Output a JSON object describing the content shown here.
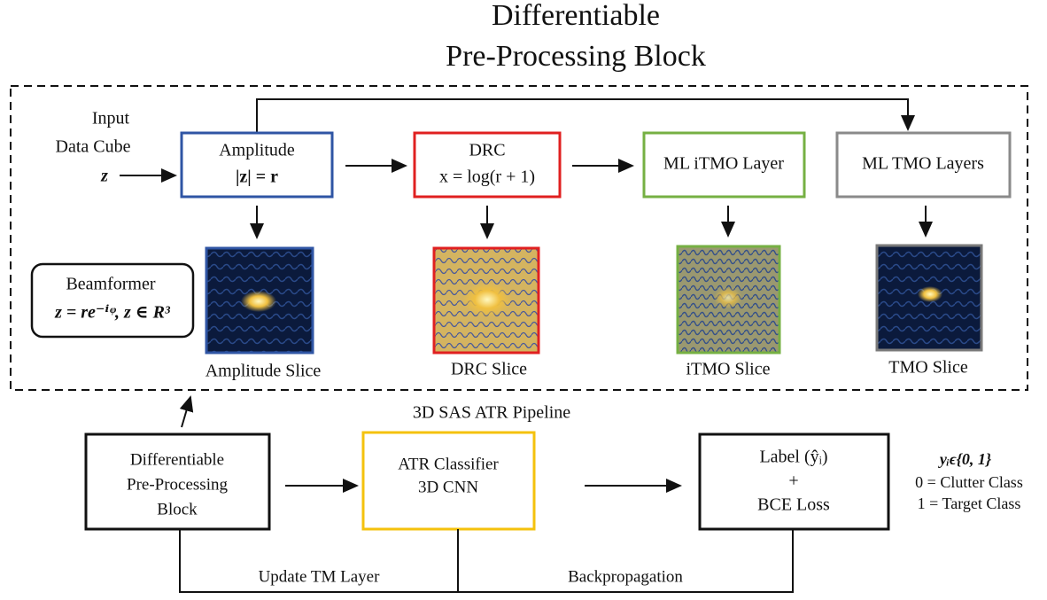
{
  "title": {
    "lines": [
      "Differentiable",
      "Pre-Processing  Block"
    ]
  },
  "input": {
    "lines": [
      "Input",
      "Data Cube",
      "z"
    ]
  },
  "blocks": [
    {
      "lines": [
        "Amplitude",
        "|z| = r"
      ]
    },
    {
      "lines": [
        "DRC",
        "x = log(r + 1)"
      ]
    },
    {
      "lines": [
        "ML iTMO Layer"
      ]
    },
    {
      "lines": [
        "ML TMO Layers"
      ]
    }
  ],
  "beamformer": {
    "lines": [
      "Beamformer",
      "z = re⁻ⁱᵠ, z ∈ R³"
    ]
  },
  "slices": [
    "Amplitude Slice",
    "DRC Slice",
    "iTMO Slice",
    "TMO Slice"
  ],
  "pipeline": {
    "title": "3D SAS ATR Pipeline",
    "boxes": [
      {
        "lines": [
          "Differentiable",
          "Pre-Processing",
          "Block"
        ]
      },
      {
        "lines": [
          "ATR Classifier",
          "3D CNN"
        ]
      },
      {
        "lines": [
          "Label (ŷᵢ)",
          "+",
          "BCE Loss"
        ]
      }
    ],
    "legend": [
      "yᵢϵ{0, 1}",
      "0 = Clutter Class",
      "1 = Target Class"
    ],
    "feedback": [
      "Update TM Layer",
      "Backpropagation"
    ]
  }
}
